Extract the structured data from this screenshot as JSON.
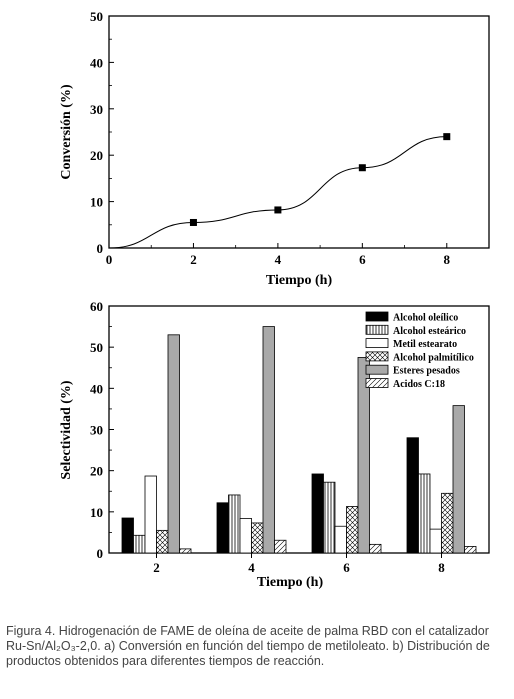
{
  "chart_data": [
    {
      "type": "line",
      "xlabel": "Tiempo (h)",
      "ylabel": "Conversión (%)",
      "xlim": [
        0,
        9
      ],
      "ylim": [
        0,
        50
      ],
      "xticks": [
        "0",
        "2",
        "4",
        "6",
        "8"
      ],
      "yticks": [
        "0",
        "10",
        "20",
        "30",
        "40",
        "50"
      ],
      "x": [
        0,
        2,
        4,
        6,
        8
      ],
      "series": [
        {
          "values": [
            0,
            5.5,
            8.2,
            17.3,
            24
          ]
        }
      ],
      "markers_at": [
        2,
        4,
        6,
        8
      ]
    },
    {
      "type": "bar",
      "xlabel": "Tiempo (h)",
      "ylabel": "Selectividad (%)",
      "ylim": [
        0,
        60
      ],
      "yticks": [
        "0",
        "10",
        "20",
        "30",
        "40",
        "50",
        "60"
      ],
      "categories": [
        "2",
        "4",
        "6",
        "8"
      ],
      "series": [
        {
          "name": "Alcohol oleílico",
          "pattern": "solid-black",
          "values": [
            8.5,
            12.2,
            19.2,
            28
          ]
        },
        {
          "name": "Alcohol esteárico",
          "pattern": "vlines",
          "values": [
            4.3,
            14.1,
            17.2,
            19.2
          ]
        },
        {
          "name": "Metil estearato",
          "pattern": "white",
          "values": [
            18.7,
            8.4,
            6.5,
            5.8
          ]
        },
        {
          "name": "Alcohol palmitílico",
          "pattern": "crosshatch",
          "values": [
            5.5,
            7.3,
            11.3,
            14.5
          ]
        },
        {
          "name": "Esteres pesados",
          "pattern": "solid-gray",
          "values": [
            53,
            55,
            47.5,
            35.8
          ]
        },
        {
          "name": "Acidos C:18",
          "pattern": "diagonal",
          "values": [
            1,
            3.1,
            2.1,
            1.6
          ]
        }
      ],
      "legend": "top-right"
    }
  ],
  "caption": "Figura 4. Hidrogenación de FAME de oleína de aceite de palma RBD con el catalizador Ru-Sn/Al₂O₃-2,0. a) Conversión en función del tiempo de metiloleato. b) Distribución de productos obtenidos para diferentes tiempos de reacción."
}
